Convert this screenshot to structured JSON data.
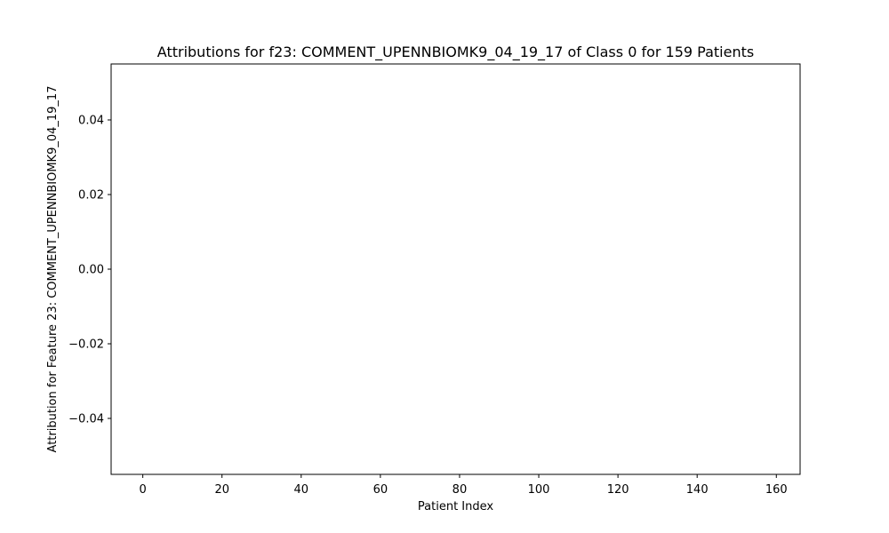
{
  "chart_data": {
    "type": "bar",
    "title": "Attributions for f23: COMMENT_UPENNBIOMK9_04_19_17 of Class 0 for 159 Patients",
    "xlabel": "Patient Index",
    "ylabel": "Attribution for Feature 23: COMMENT_UPENNBIOMK9_04_19_17",
    "xlim": [
      -8.0,
      166.0
    ],
    "ylim": [
      -0.055,
      0.055
    ],
    "x_ticks": [
      0,
      20,
      40,
      60,
      80,
      100,
      120,
      140,
      160
    ],
    "y_ticks": [
      -0.04,
      -0.02,
      0.0,
      0.02,
      0.04
    ],
    "y_tick_labels": [
      "−0.04",
      "−0.02",
      "0.00",
      "0.02",
      "0.04"
    ],
    "x": [],
    "values": [],
    "grid": false,
    "legend": "none"
  }
}
